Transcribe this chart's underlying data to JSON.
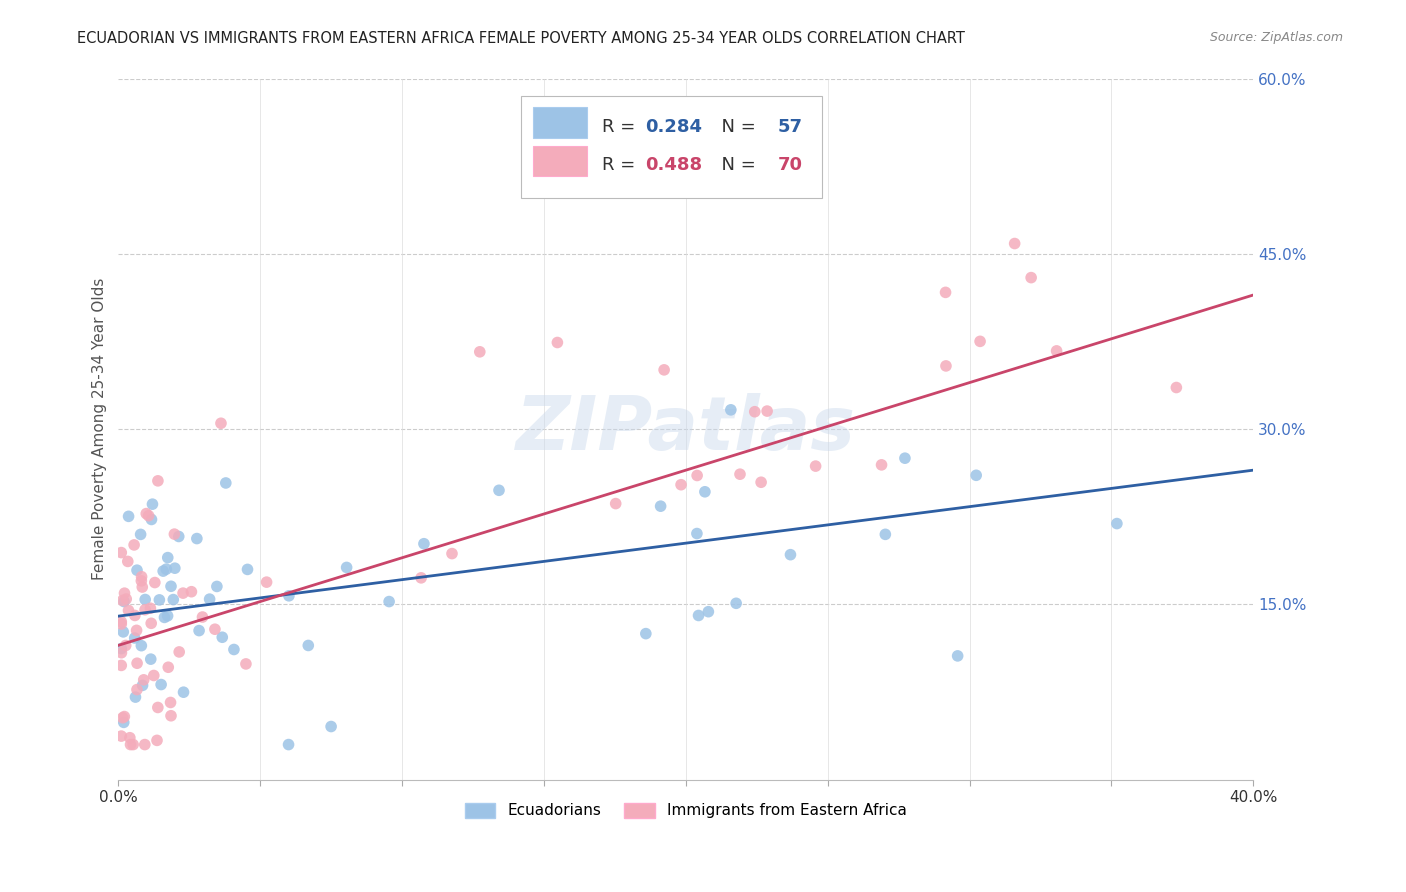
{
  "title": "ECUADORIAN VS IMMIGRANTS FROM EASTERN AFRICA FEMALE POVERTY AMONG 25-34 YEAR OLDS CORRELATION CHART",
  "source": "Source: ZipAtlas.com",
  "ylabel": "Female Poverty Among 25-34 Year Olds",
  "xlim": [
    0.0,
    0.4
  ],
  "ylim": [
    0.0,
    0.6
  ],
  "ytick_right_labels": [
    "15.0%",
    "30.0%",
    "45.0%",
    "60.0%"
  ],
  "ytick_right_values": [
    0.15,
    0.3,
    0.45,
    0.6
  ],
  "blue_color": "#9DC3E6",
  "pink_color": "#F4ACBB",
  "blue_line_color": "#2E5FA3",
  "pink_line_color": "#C9456A",
  "blue_R": 0.284,
  "blue_N": 57,
  "pink_R": 0.488,
  "pink_N": 70,
  "watermark": "ZIPatlas",
  "legend_label_blue": "Ecuadorians",
  "legend_label_pink": "Immigrants from Eastern Africa",
  "background_color": "#FFFFFF",
  "right_tick_color": "#4472C4",
  "grid_color": "#CCCCCC",
  "title_color": "#222222",
  "source_color": "#888888",
  "ylabel_color": "#555555"
}
